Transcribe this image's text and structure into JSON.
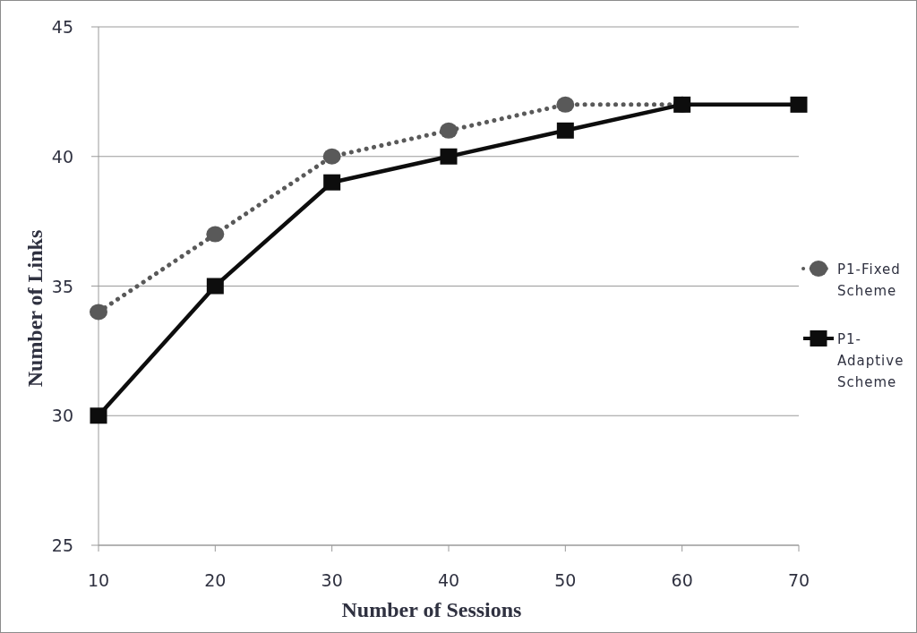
{
  "chart_data": {
    "type": "line",
    "xlabel": "Number of Sessions",
    "ylabel": "Number of Links",
    "x": [
      10,
      20,
      30,
      40,
      50,
      60,
      70
    ],
    "series": [
      {
        "name": "P1-Fixed Scheme",
        "color": "#595959",
        "values": [
          34,
          37,
          40,
          41,
          42,
          42,
          null
        ],
        "marker": "circle",
        "line_style": "dotted"
      },
      {
        "name": "P1-Adaptive Scheme",
        "color": "#0d0d0d",
        "values": [
          30,
          35,
          39,
          40,
          41,
          42,
          42
        ],
        "marker": "square",
        "line_style": "solid"
      }
    ],
    "xlim": [
      10,
      70
    ],
    "xticks": [
      10,
      20,
      30,
      40,
      50,
      60,
      70
    ],
    "ylim": [
      25,
      45
    ],
    "yticks": [
      25,
      30,
      35,
      40,
      45
    ],
    "grid": "y",
    "legend": "right"
  }
}
